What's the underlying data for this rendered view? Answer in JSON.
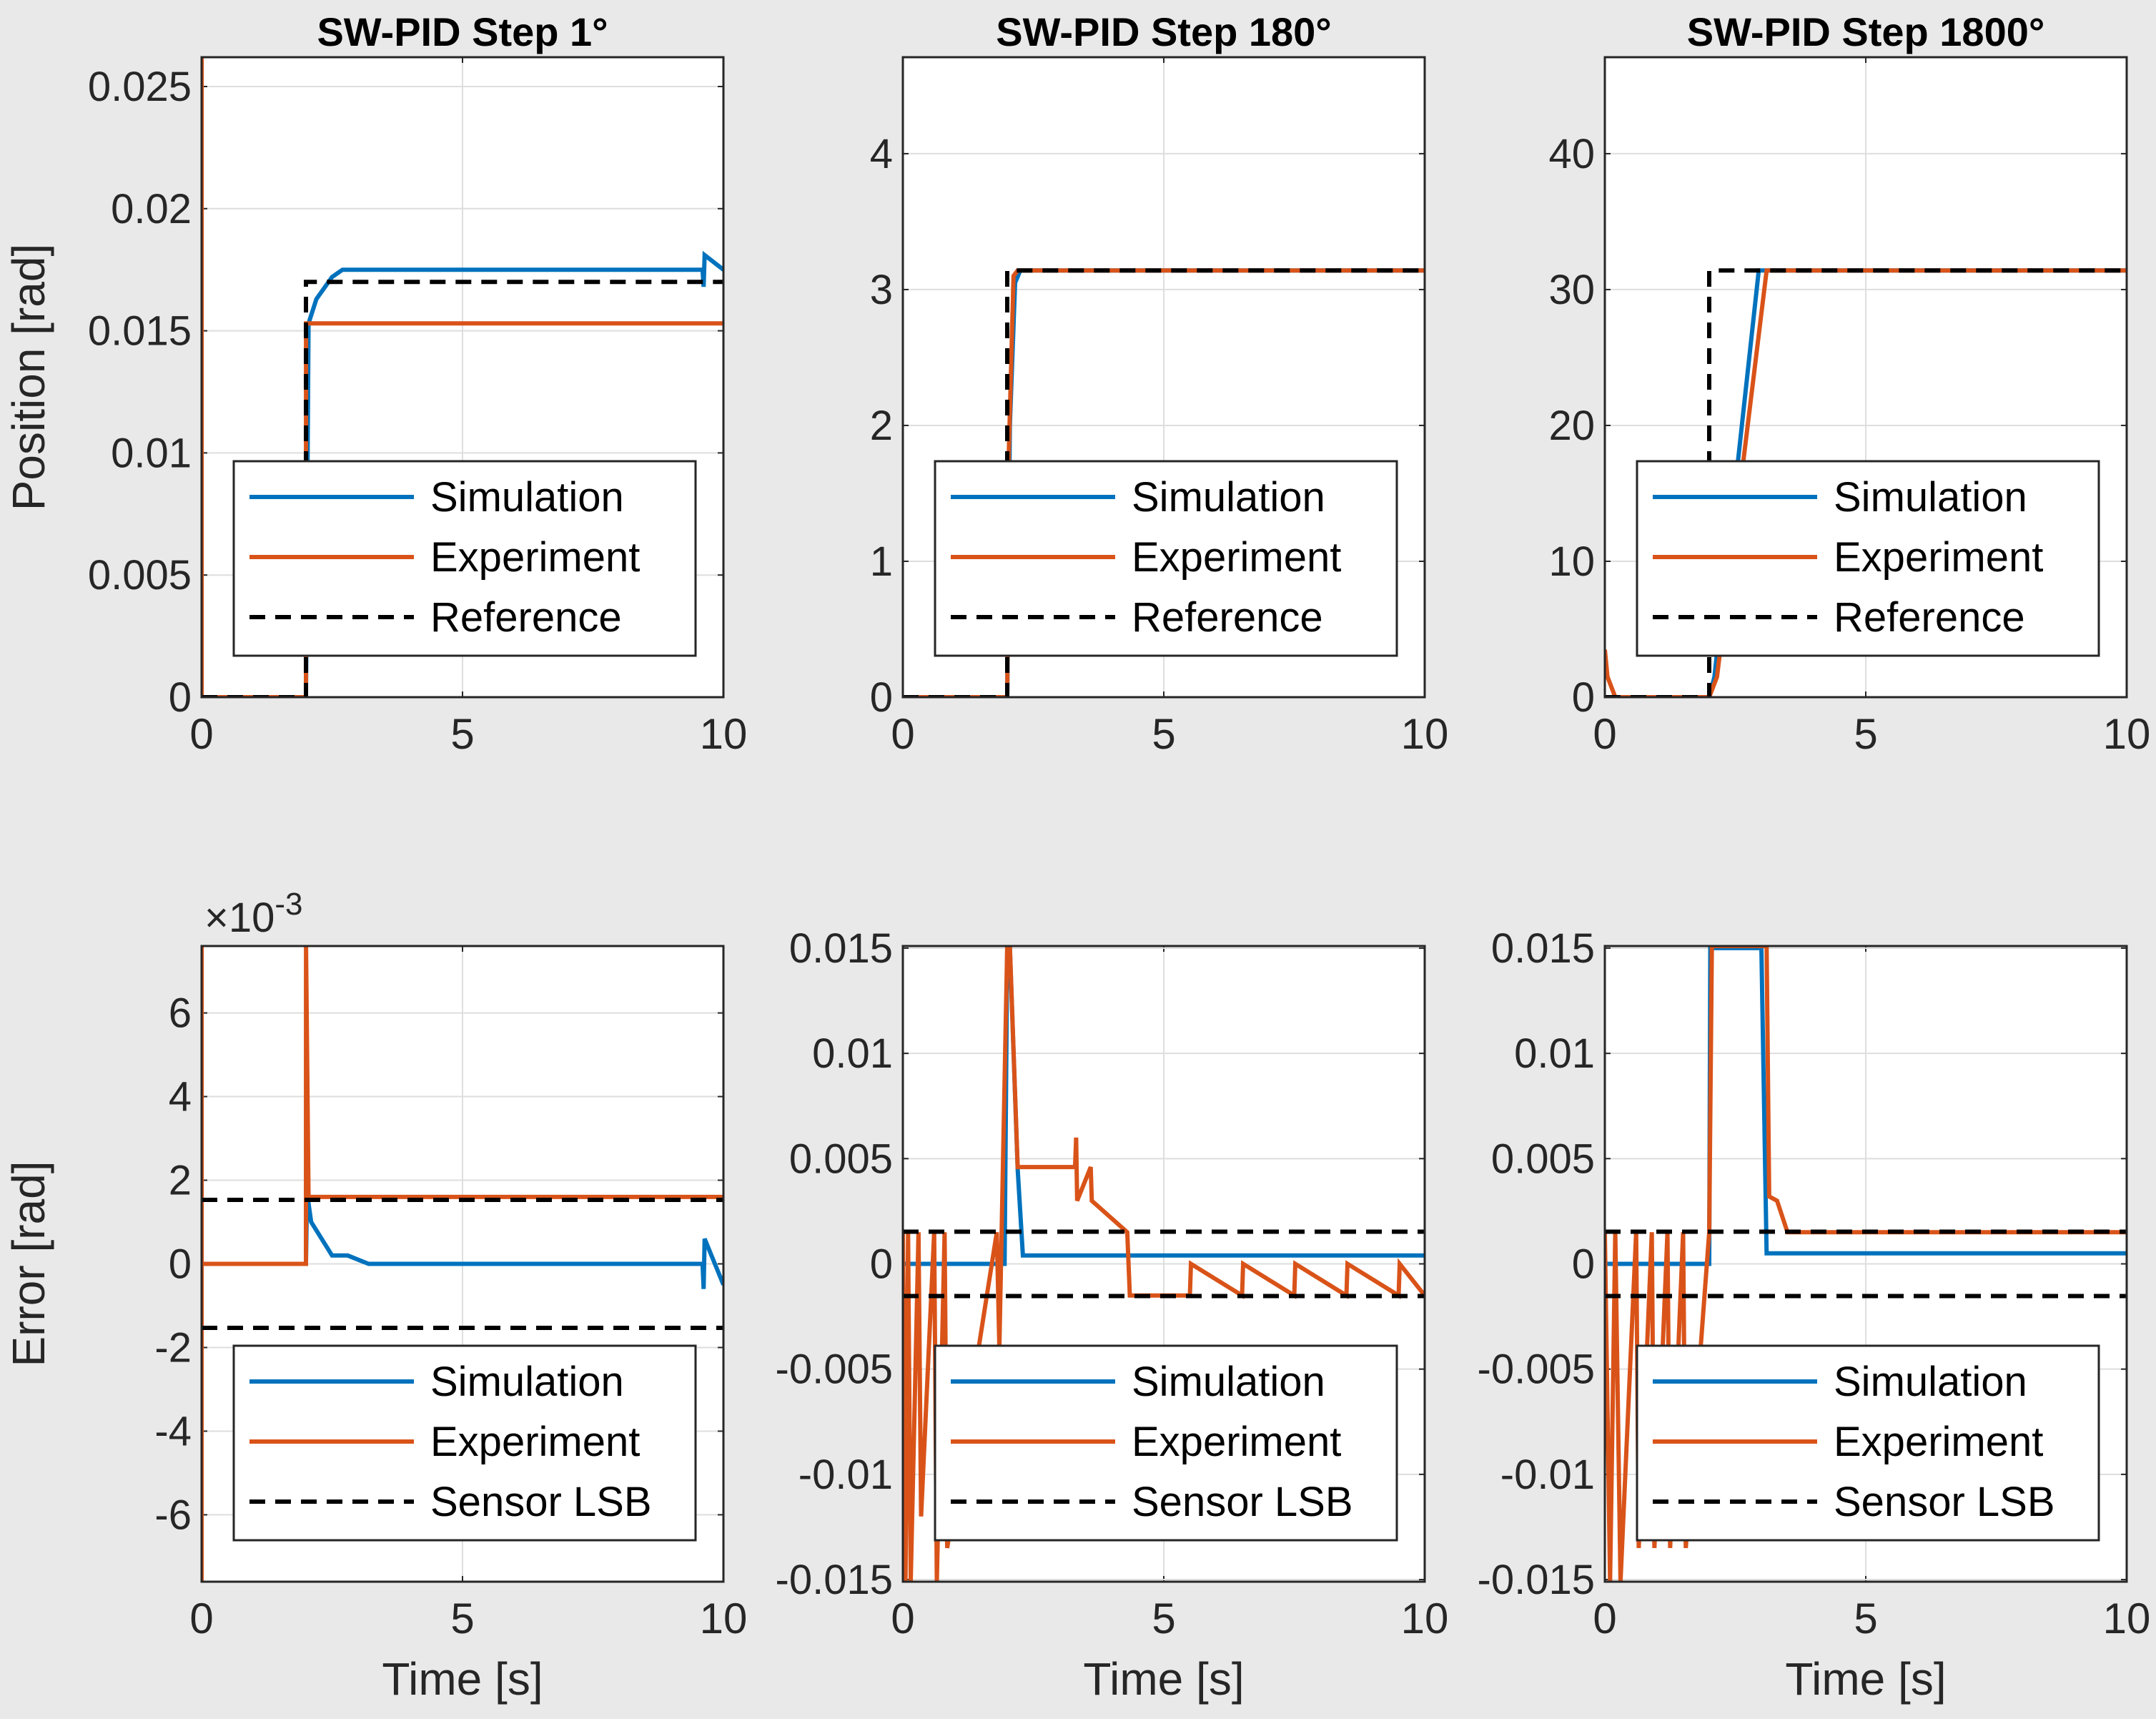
{
  "colors": {
    "simulation": "#0072BD",
    "experiment": "#D95319",
    "reference": "#000000",
    "background": "#E9E9E9",
    "axes": "#FFFFFF",
    "grid": "#DEDEDE"
  },
  "chart_data": [
    {
      "type": "line",
      "title": "SW-PID Step 1°",
      "ylabel": "Position [rad]",
      "xlabel": "",
      "xlim": [
        0,
        10
      ],
      "ylim": [
        0,
        0.0262
      ],
      "xticks": [
        "0",
        "5",
        "10"
      ],
      "yticks": [
        "0",
        "0.005",
        "0.01",
        "0.015",
        "0.02",
        "0.025"
      ],
      "exponent": "",
      "grid": true,
      "legend_position": "bottom-left",
      "legend": [
        "Simulation",
        "Experiment",
        "Reference"
      ],
      "series": [
        {
          "name": "Simulation",
          "x": [
            0,
            2,
            2.05,
            2.2,
            2.5,
            2.7,
            9.6,
            9.62,
            9.64,
            10
          ],
          "y": [
            0,
            0,
            0.0153,
            0.0163,
            0.0172,
            0.0175,
            0.0175,
            0.0168,
            0.0181,
            0.0175
          ]
        },
        {
          "name": "Experiment",
          "x": [
            0,
            0.001,
            0.002,
            2,
            2.001,
            2.05,
            2.15,
            10
          ],
          "y": [
            0.0262,
            0.0262,
            0,
            0,
            0.0153,
            0.0153,
            0.0153,
            0.0153
          ]
        },
        {
          "name": "Reference",
          "x": [
            0,
            2,
            2,
            10
          ],
          "y": [
            0,
            0,
            0.017,
            0.017
          ]
        }
      ]
    },
    {
      "type": "line",
      "title": "SW-PID Step 180°",
      "ylabel": "",
      "xlabel": "",
      "xlim": [
        0,
        10
      ],
      "ylim": [
        0,
        4.71
      ],
      "xticks": [
        "0",
        "5",
        "10"
      ],
      "yticks": [
        "0",
        "1",
        "2",
        "3",
        "4"
      ],
      "exponent": "",
      "grid": true,
      "legend_position": "bottom-left",
      "legend": [
        "Simulation",
        "Experiment",
        "Reference"
      ],
      "series": [
        {
          "name": "Simulation",
          "x": [
            0,
            2,
            2.05,
            2.15,
            2.25,
            10
          ],
          "y": [
            0,
            0,
            2.0,
            3.05,
            3.14,
            3.14
          ]
        },
        {
          "name": "Experiment",
          "x": [
            0,
            2,
            2.03,
            2.12,
            2.2,
            10
          ],
          "y": [
            0,
            0,
            1.8,
            3.1,
            3.14,
            3.14
          ]
        },
        {
          "name": "Reference",
          "x": [
            0,
            2,
            2,
            10
          ],
          "y": [
            0,
            0,
            3.14,
            3.14
          ]
        }
      ]
    },
    {
      "type": "line",
      "title": "SW-PID Step 1800°",
      "ylabel": "",
      "xlabel": "",
      "xlim": [
        0,
        10
      ],
      "ylim": [
        0,
        47.1
      ],
      "xticks": [
        "0",
        "5",
        "10"
      ],
      "yticks": [
        "0",
        "10",
        "20",
        "30",
        "40"
      ],
      "exponent": "",
      "grid": true,
      "legend_position": "bottom-left",
      "legend": [
        "Simulation",
        "Experiment",
        "Reference"
      ],
      "series": [
        {
          "name": "Simulation",
          "x": [
            0,
            2,
            2.1,
            2.95,
            10
          ],
          "y": [
            0,
            0,
            1.5,
            31.4,
            31.4
          ]
        },
        {
          "name": "Experiment",
          "x": [
            0,
            0.05,
            0.2,
            2,
            2.15,
            3.1,
            10
          ],
          "y": [
            3.5,
            1.5,
            0,
            0,
            1.5,
            31.4,
            31.4
          ]
        },
        {
          "name": "Reference",
          "x": [
            0,
            2,
            2,
            10
          ],
          "y": [
            0,
            0,
            31.4,
            31.4
          ]
        }
      ]
    },
    {
      "type": "line",
      "title": "",
      "ylabel": "Error [rad]",
      "xlabel": "Time [s]",
      "xlim": [
        0,
        10
      ],
      "ylim": [
        -0.0076,
        0.0076
      ],
      "xticks": [
        "0",
        "5",
        "10"
      ],
      "yticks": [
        "-6",
        "-4",
        "-2",
        "0",
        "2",
        "4",
        "6"
      ],
      "ytick_values": [
        -0.006,
        -0.004,
        -0.002,
        0,
        0.002,
        0.004,
        0.006
      ],
      "exponent_base": "×10",
      "exponent_power": "-3",
      "grid": true,
      "legend_position": "bottom-left",
      "legend": [
        "Simulation",
        "Experiment",
        "Sensor LSB"
      ],
      "series": [
        {
          "name": "Simulation",
          "x": [
            0,
            2,
            2.02,
            2.1,
            2.5,
            2.8,
            3.2,
            9.6,
            9.62,
            9.64,
            10
          ],
          "y": [
            0,
            0,
            0.0017,
            0.001,
            0.0002,
            0.0002,
            0,
            0,
            -0.0006,
            0.0006,
            -0.0005
          ]
        },
        {
          "name": "Experiment",
          "x": [
            0,
            0.001,
            0.002,
            0.02,
            2,
            2.001,
            2.05,
            10
          ],
          "y": [
            -0.0076,
            0.0076,
            0,
            0,
            0,
            0.0076,
            0.0016,
            0.0016
          ]
        },
        {
          "name": "Sensor LSB",
          "x": [
            0,
            10
          ],
          "y": [
            0.00153,
            0.00153
          ]
        },
        {
          "name": "Sensor LSB",
          "x": [
            0,
            10
          ],
          "y": [
            -0.00153,
            -0.00153
          ]
        }
      ]
    },
    {
      "type": "line",
      "title": "",
      "ylabel": "",
      "xlabel": "Time [s]",
      "xlim": [
        0,
        10
      ],
      "ylim": [
        -0.0151,
        0.0151
      ],
      "xticks": [
        "0",
        "5",
        "10"
      ],
      "yticks": [
        "-0.015",
        "-0.01",
        "-0.005",
        "0",
        "0.005",
        "0.01",
        "0.015"
      ],
      "exponent": "",
      "grid": true,
      "legend_position": "bottom-left",
      "legend": [
        "Simulation",
        "Experiment",
        "Sensor LSB"
      ],
      "series": [
        {
          "name": "Simulation",
          "x": [
            0,
            1.95,
            2.0,
            2.05,
            2.2,
            2.3,
            10
          ],
          "y": [
            0,
            0,
            0.015,
            0.015,
            0.0045,
            0.0004,
            0.0004
          ]
        },
        {
          "name": "Experiment",
          "x": [
            0,
            0.05,
            0.1,
            0.15,
            0.3,
            0.35,
            0.6,
            0.65,
            0.8,
            0.85,
            1.8,
            1.85,
            2.0,
            2.05,
            2.2,
            2.25,
            3.3,
            3.32,
            3.34,
            3.6,
            3.62,
            4.3,
            4.35,
            5.5,
            5.52,
            6.5,
            6.52,
            7.5,
            7.52,
            8.5,
            8.52,
            9.5,
            9.52,
            10
          ],
          "y": [
            0.0015,
            -0.0151,
            0.0015,
            -0.0151,
            0.0015,
            -0.012,
            0.0015,
            -0.0151,
            0.0015,
            -0.0135,
            0.0015,
            -0.004,
            0.0151,
            0.0151,
            0.0046,
            0.0046,
            0.0046,
            0.006,
            0.003,
            0.0046,
            0.003,
            0.0015,
            -0.0015,
            -0.0015,
            0,
            -0.0015,
            0,
            -0.0015,
            0,
            -0.0015,
            0,
            -0.0015,
            0,
            -0.0015
          ]
        },
        {
          "name": "Sensor LSB",
          "x": [
            0,
            10
          ],
          "y": [
            0.00153,
            0.00153
          ]
        },
        {
          "name": "Sensor LSB",
          "x": [
            0,
            10
          ],
          "y": [
            -0.00153,
            -0.00153
          ]
        }
      ]
    },
    {
      "type": "line",
      "title": "",
      "ylabel": "",
      "xlabel": "Time [s]",
      "xlim": [
        0,
        10
      ],
      "ylim": [
        -0.0151,
        0.0151
      ],
      "xticks": [
        "0",
        "5",
        "10"
      ],
      "yticks": [
        "-0.015",
        "-0.01",
        "-0.005",
        "0",
        "0.005",
        "0.01",
        "0.015"
      ],
      "exponent": "",
      "grid": true,
      "legend_position": "bottom-left",
      "legend": [
        "Simulation",
        "Experiment",
        "Sensor LSB"
      ],
      "series": [
        {
          "name": "Simulation",
          "x": [
            0,
            2,
            2.02,
            2.95,
            3.0,
            3.1,
            3.2,
            10
          ],
          "y": [
            0,
            0,
            0.015,
            0.015,
            0.015,
            0.0005,
            0.0005,
            0.0005
          ]
        },
        {
          "name": "Experiment",
          "x": [
            0,
            0.1,
            0.2,
            0.3,
            0.6,
            0.65,
            0.9,
            0.95,
            1.2,
            1.25,
            1.5,
            1.55,
            2.0,
            2.05,
            3.1,
            3.15,
            3.3,
            3.5,
            3.55,
            10
          ],
          "y": [
            0.0015,
            -0.0151,
            0.0015,
            -0.0151,
            0.0015,
            -0.0135,
            0.0015,
            -0.0135,
            0.0015,
            -0.0135,
            0.0015,
            -0.0135,
            0.0015,
            0.0151,
            0.0151,
            0.0032,
            0.003,
            0.0015,
            0.0015,
            0.0015
          ]
        },
        {
          "name": "Sensor LSB",
          "x": [
            0,
            10
          ],
          "y": [
            0.00153,
            0.00153
          ]
        },
        {
          "name": "Sensor LSB",
          "x": [
            0,
            10
          ],
          "y": [
            -0.00153,
            -0.00153
          ]
        }
      ]
    }
  ]
}
